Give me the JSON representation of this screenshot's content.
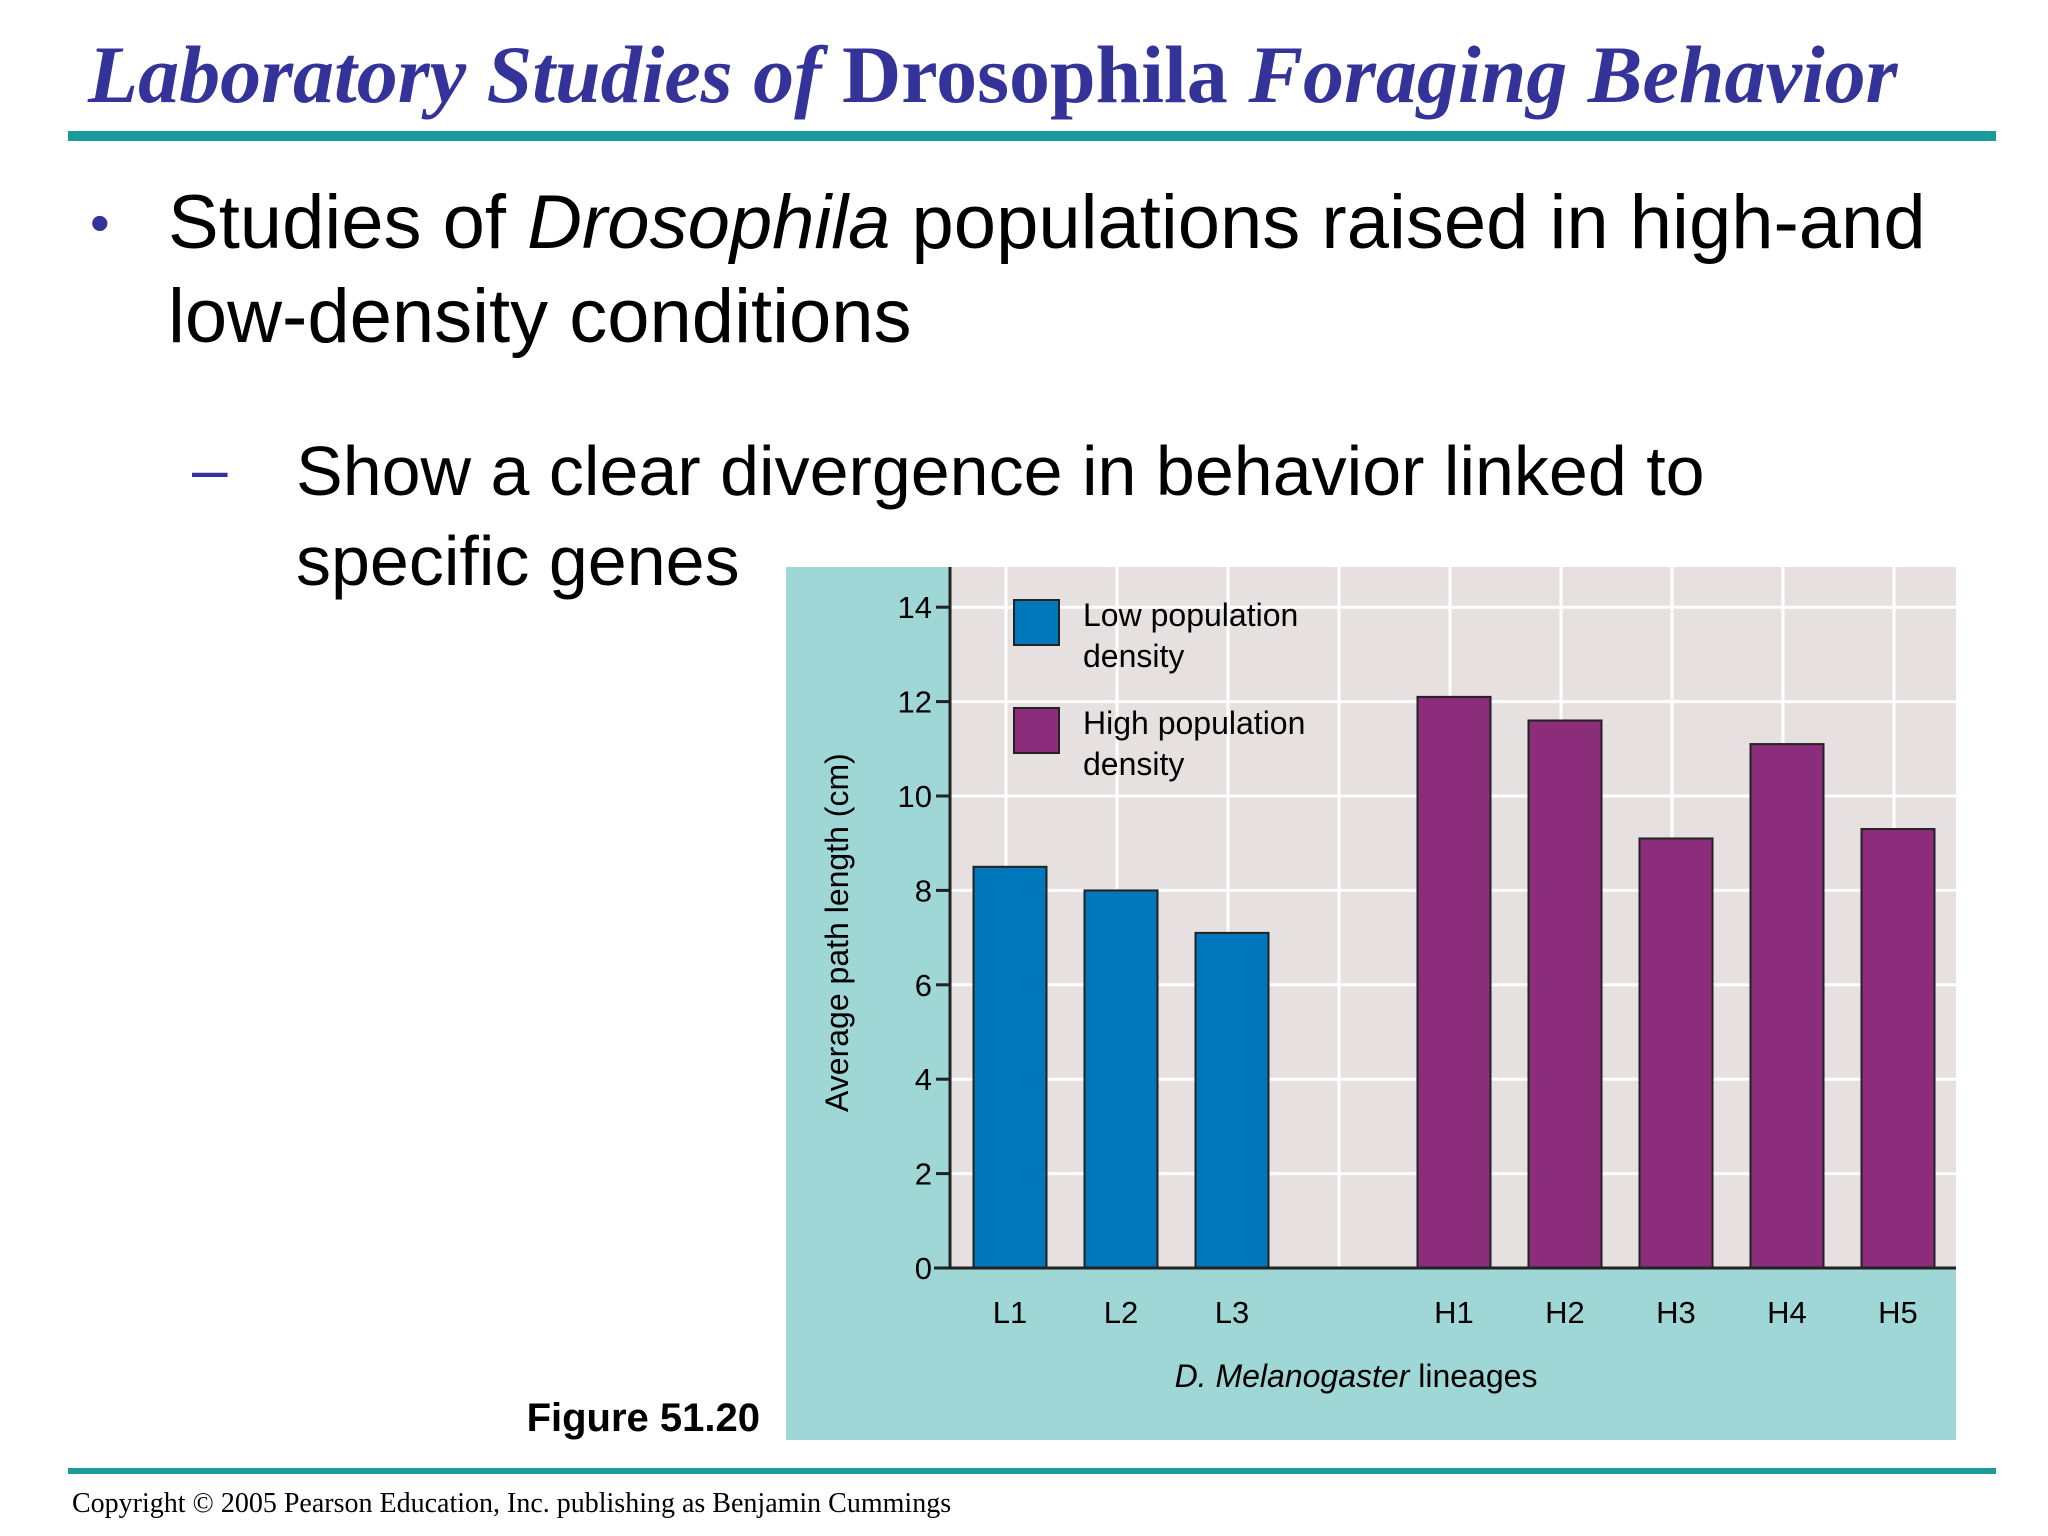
{
  "slide": {
    "title_part1": "Laboratory Studies of",
    "title_part2": "Drosophila",
    "title_part3": "Foraging Behavior",
    "bullet_bullet": "•",
    "bullet_pre": "Studies of ",
    "bullet_italic": "Drosophila",
    "bullet_post": " populations raised in high-and low-density conditions",
    "sub_dash": "–",
    "sub_text": "Show a clear divergence in behavior linked to specific genes",
    "figure_label": "Figure 51.20",
    "copyright": "Copyright © 2005 Pearson Education, Inc. publishing as Benjamin Cummings"
  },
  "colors": {
    "title": "#333399",
    "rule": "#1a9a9a",
    "chart_outer_bg": "#9fd6d6",
    "plot_bg": "#e6e0e0",
    "low": "#0077bb",
    "high": "#8b2d7b"
  },
  "chart_data": {
    "type": "bar",
    "ylabel": "Average path length (cm)",
    "xlabel_italic": "D. Melanogaster",
    "xlabel_rest": " lineages",
    "ylim": [
      0,
      14
    ],
    "yticks": [
      0,
      2,
      4,
      6,
      8,
      10,
      12,
      14
    ],
    "grid": true,
    "legend_position": "top-left",
    "series": [
      {
        "name": "Low population density",
        "legend_line1": "Low population",
        "legend_line2": "density",
        "categories": [
          "L1",
          "L2",
          "L3"
        ],
        "values": [
          8.5,
          8.0,
          7.1
        ]
      },
      {
        "name": "High population density",
        "legend_line1": "High population",
        "legend_line2": "density",
        "categories": [
          "H1",
          "H2",
          "H3",
          "H4",
          "H5"
        ],
        "values": [
          12.1,
          11.6,
          9.1,
          11.1,
          9.3
        ]
      }
    ]
  }
}
